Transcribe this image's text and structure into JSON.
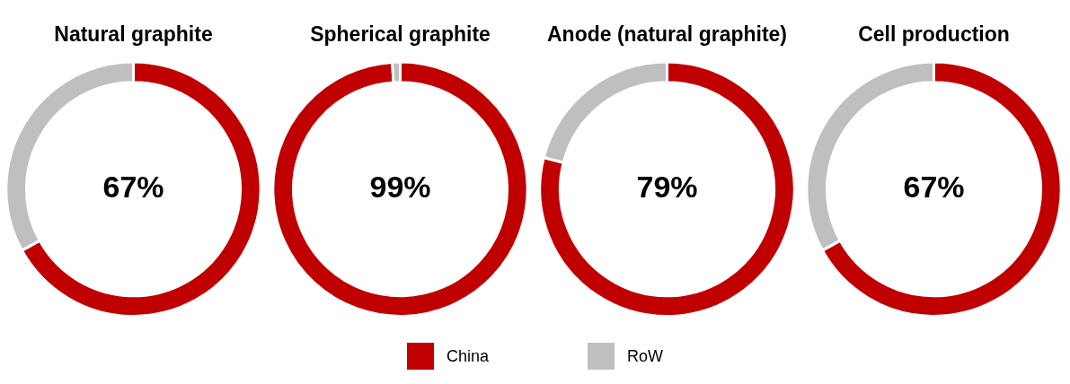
{
  "chart_data": [
    {
      "type": "donut",
      "title": "Natural graphite",
      "categories": [
        "China",
        "RoW"
      ],
      "values": [
        67,
        33
      ],
      "colors": [
        "#c00000",
        "#bfbfbf"
      ],
      "annotations": [
        "67%"
      ],
      "legend": "bottom"
    },
    {
      "type": "donut",
      "title": "Spherical graphite",
      "categories": [
        null,
        null
      ],
      "values": [
        99,
        1
      ],
      "colors": [
        "#c00000",
        "#bfbfbf"
      ],
      "annotations": [
        "99%"
      ]
    },
    {
      "type": "donut",
      "title": "Anode (natural graphite)",
      "categories": [
        null,
        null
      ],
      "values": [
        79,
        21
      ],
      "colors": [
        "#c00000",
        "#bfbfbf"
      ],
      "annotations": [
        "79%"
      ]
    },
    {
      "type": "donut",
      "title": "Cell production",
      "categories": [
        null,
        null
      ],
      "values": [
        67,
        33
      ],
      "colors": [
        "#c00000",
        "#bfbfbf"
      ],
      "annotations": [
        "67%"
      ]
    }
  ]
}
